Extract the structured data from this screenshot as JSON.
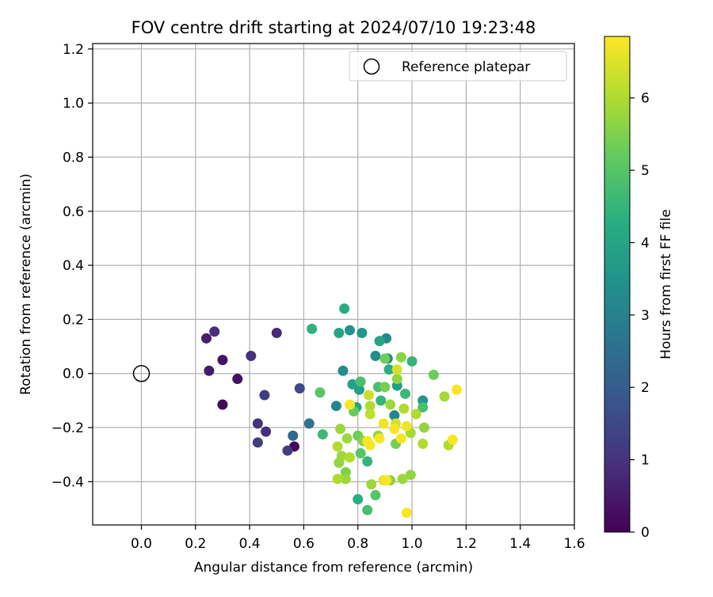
{
  "chart_data": {
    "type": "scatter",
    "title": "FOV centre drift starting at 2024/07/10 19:23:48",
    "xlabel": "Angular distance from reference (arcmin)",
    "ylabel": "Rotation from reference (arcmin)",
    "xlim": [
      -0.18,
      1.6
    ],
    "ylim": [
      -0.56,
      1.22
    ],
    "xticks": [
      "0.0",
      "0.2",
      "0.4",
      "0.6",
      "0.8",
      "1.0",
      "1.2",
      "1.4",
      "1.6"
    ],
    "yticks": [
      "−0.4",
      "−0.2",
      "0.0",
      "0.2",
      "0.4",
      "0.6",
      "0.8",
      "1.0",
      "1.2"
    ],
    "grid": true,
    "legend": {
      "location": "top-right",
      "entries": [
        "Reference platepar"
      ]
    },
    "colormap": "viridis",
    "colorbar": {
      "label": "Hours from first FF file",
      "min": 0,
      "max": 6.85,
      "ticks": [
        "0",
        "1",
        "2",
        "3",
        "4",
        "5",
        "6"
      ]
    },
    "reference": {
      "x": 0.0,
      "y": 0.0,
      "label": "Reference platepar"
    },
    "points": [
      {
        "x": 0.24,
        "y": 0.13,
        "t": 0.6
      },
      {
        "x": 0.27,
        "y": 0.155,
        "t": 0.9
      },
      {
        "x": 0.25,
        "y": 0.01,
        "t": 0.5
      },
      {
        "x": 0.3,
        "y": 0.05,
        "t": 0.35
      },
      {
        "x": 0.3,
        "y": -0.115,
        "t": 0.15
      },
      {
        "x": 0.355,
        "y": -0.02,
        "t": 0.3
      },
      {
        "x": 0.405,
        "y": 0.065,
        "t": 1.0
      },
      {
        "x": 0.5,
        "y": 0.15,
        "t": 0.8
      },
      {
        "x": 0.455,
        "y": -0.08,
        "t": 1.2
      },
      {
        "x": 0.43,
        "y": -0.185,
        "t": 1.0
      },
      {
        "x": 0.46,
        "y": -0.215,
        "t": 0.9
      },
      {
        "x": 0.43,
        "y": -0.255,
        "t": 1.2
      },
      {
        "x": 0.54,
        "y": -0.285,
        "t": 1.2
      },
      {
        "x": 0.565,
        "y": -0.27,
        "t": 0.15
      },
      {
        "x": 0.585,
        "y": -0.055,
        "t": 1.5
      },
      {
        "x": 0.56,
        "y": -0.23,
        "t": 2.3
      },
      {
        "x": 0.62,
        "y": -0.185,
        "t": 2.6
      },
      {
        "x": 0.63,
        "y": 0.165,
        "t": 4.4
      },
      {
        "x": 0.66,
        "y": -0.07,
        "t": 5.0
      },
      {
        "x": 0.67,
        "y": -0.225,
        "t": 4.6
      },
      {
        "x": 0.72,
        "y": -0.12,
        "t": 3.1
      },
      {
        "x": 0.73,
        "y": 0.15,
        "t": 4.0
      },
      {
        "x": 0.745,
        "y": 0.01,
        "t": 3.3
      },
      {
        "x": 0.75,
        "y": 0.24,
        "t": 4.2
      },
      {
        "x": 0.77,
        "y": 0.16,
        "t": 3.5
      },
      {
        "x": 0.76,
        "y": -0.24,
        "t": 5.8
      },
      {
        "x": 0.735,
        "y": -0.205,
        "t": 5.8
      },
      {
        "x": 0.725,
        "y": -0.27,
        "t": 6.0
      },
      {
        "x": 0.74,
        "y": -0.305,
        "t": 5.8
      },
      {
        "x": 0.73,
        "y": -0.33,
        "t": 5.7
      },
      {
        "x": 0.77,
        "y": -0.31,
        "t": 6.0
      },
      {
        "x": 0.755,
        "y": -0.365,
        "t": 5.5
      },
      {
        "x": 0.725,
        "y": -0.39,
        "t": 6.0
      },
      {
        "x": 0.755,
        "y": -0.39,
        "t": 5.8
      },
      {
        "x": 0.77,
        "y": -0.115,
        "t": 6.8
      },
      {
        "x": 0.78,
        "y": -0.04,
        "t": 3.9
      },
      {
        "x": 0.795,
        "y": -0.125,
        "t": 4.0
      },
      {
        "x": 0.785,
        "y": -0.14,
        "t": 5.2
      },
      {
        "x": 0.805,
        "y": -0.06,
        "t": 3.8
      },
      {
        "x": 0.81,
        "y": -0.03,
        "t": 4.8
      },
      {
        "x": 0.815,
        "y": 0.15,
        "t": 3.6
      },
      {
        "x": 0.8,
        "y": -0.23,
        "t": 5.3
      },
      {
        "x": 0.82,
        "y": -0.25,
        "t": 5.6
      },
      {
        "x": 0.835,
        "y": -0.325,
        "t": 4.5
      },
      {
        "x": 0.81,
        "y": -0.295,
        "t": 5.0
      },
      {
        "x": 0.835,
        "y": -0.25,
        "t": 6.8
      },
      {
        "x": 0.845,
        "y": -0.265,
        "t": 6.8
      },
      {
        "x": 0.85,
        "y": -0.41,
        "t": 5.8
      },
      {
        "x": 0.865,
        "y": -0.45,
        "t": 5.0
      },
      {
        "x": 0.8,
        "y": -0.465,
        "t": 4.3
      },
      {
        "x": 0.835,
        "y": -0.505,
        "t": 4.8
      },
      {
        "x": 0.84,
        "y": -0.08,
        "t": 6.3
      },
      {
        "x": 0.845,
        "y": -0.12,
        "t": 6.0
      },
      {
        "x": 0.845,
        "y": -0.15,
        "t": 6.2
      },
      {
        "x": 0.865,
        "y": 0.065,
        "t": 3.4
      },
      {
        "x": 0.875,
        "y": -0.05,
        "t": 4.8
      },
      {
        "x": 0.88,
        "y": 0.12,
        "t": 4.0
      },
      {
        "x": 0.885,
        "y": -0.1,
        "t": 4.5
      },
      {
        "x": 0.875,
        "y": -0.23,
        "t": 5.7
      },
      {
        "x": 0.88,
        "y": -0.24,
        "t": 6.8
      },
      {
        "x": 0.895,
        "y": -0.185,
        "t": 6.7
      },
      {
        "x": 0.9,
        "y": -0.05,
        "t": 5.4
      },
      {
        "x": 0.9,
        "y": 0.055,
        "t": 5.3
      },
      {
        "x": 0.905,
        "y": 0.13,
        "t": 3.2
      },
      {
        "x": 0.91,
        "y": 0.055,
        "t": 3.1
      },
      {
        "x": 0.915,
        "y": 0.015,
        "t": 4.3
      },
      {
        "x": 0.92,
        "y": -0.115,
        "t": 5.8
      },
      {
        "x": 0.895,
        "y": -0.395,
        "t": 6.5
      },
      {
        "x": 0.905,
        "y": -0.395,
        "t": 6.8
      },
      {
        "x": 0.92,
        "y": -0.395,
        "t": 5.6
      },
      {
        "x": 0.935,
        "y": -0.155,
        "t": 3.1
      },
      {
        "x": 0.94,
        "y": -0.185,
        "t": 6.4
      },
      {
        "x": 0.935,
        "y": -0.205,
        "t": 6.8
      },
      {
        "x": 0.945,
        "y": -0.045,
        "t": 3.8
      },
      {
        "x": 0.945,
        "y": -0.02,
        "t": 5.7
      },
      {
        "x": 0.945,
        "y": 0.015,
        "t": 6.4
      },
      {
        "x": 0.94,
        "y": -0.26,
        "t": 5.4
      },
      {
        "x": 0.96,
        "y": 0.06,
        "t": 5.6
      },
      {
        "x": 0.96,
        "y": -0.24,
        "t": 6.8
      },
      {
        "x": 0.965,
        "y": -0.39,
        "t": 5.8
      },
      {
        "x": 0.97,
        "y": -0.13,
        "t": 6.0
      },
      {
        "x": 0.975,
        "y": -0.075,
        "t": 4.6
      },
      {
        "x": 0.98,
        "y": -0.195,
        "t": 6.7
      },
      {
        "x": 0.98,
        "y": -0.515,
        "t": 6.8
      },
      {
        "x": 0.995,
        "y": -0.22,
        "t": 5.9
      },
      {
        "x": 0.995,
        "y": -0.375,
        "t": 5.7
      },
      {
        "x": 1.0,
        "y": 0.045,
        "t": 4.5
      },
      {
        "x": 1.015,
        "y": -0.15,
        "t": 6.0
      },
      {
        "x": 1.04,
        "y": -0.1,
        "t": 3.6
      },
      {
        "x": 1.04,
        "y": -0.125,
        "t": 4.8
      },
      {
        "x": 1.045,
        "y": -0.2,
        "t": 5.7
      },
      {
        "x": 1.04,
        "y": -0.26,
        "t": 6.0
      },
      {
        "x": 1.08,
        "y": -0.005,
        "t": 5.3
      },
      {
        "x": 1.12,
        "y": -0.085,
        "t": 5.9
      },
      {
        "x": 1.135,
        "y": -0.265,
        "t": 6.0
      },
      {
        "x": 1.15,
        "y": -0.245,
        "t": 6.8
      },
      {
        "x": 1.165,
        "y": -0.06,
        "t": 6.8
      }
    ]
  }
}
